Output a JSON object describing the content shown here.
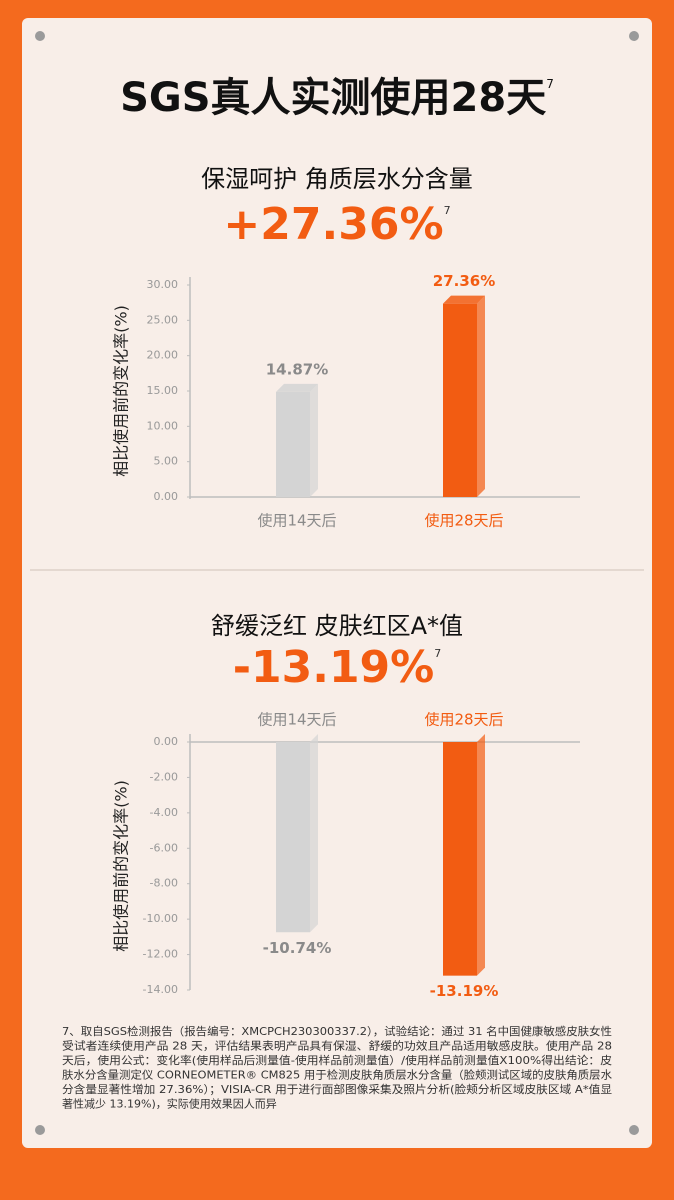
{
  "page": {
    "title": "SGS真人实测使用28天",
    "title_note": "7",
    "footnote": [
      "7、取自SGS检测报告（报告编号：XMCPCH230300337.2），试验结论：通过 31 名中国健康敏感皮肤女性",
      "受试者连续使用产品 28 天，评估结果表明产品具有保湿、舒缓的功效且产品适用敏感皮肤。使用产品 28",
      "天后，使用公式：变化率(使用样品后测量值-使用样品前测量值）/使用样品前测量值X100%得出结论：皮",
      "肤水分含量测定仪 CORNEOMETER® CM825 用于检测皮肤角质层水分含量（脸颊测试区域的皮肤角质层水",
      "分含量显著性增加 27.36%）；VISIA-CR 用于进行面部图像采集及照片分析(脸颊分析区域皮肤区域 A*值显",
      "著性减少 13.19%)，实际使用效果因人而异"
    ]
  },
  "chart_data": [
    {
      "type": "bar",
      "title": "保湿呵护  角质层水分含量",
      "headline": "+27.36%",
      "headline_note": "7",
      "y_label": "相比使用前的变化率(%)",
      "categories": [
        "使用14天后",
        "使用28天后"
      ],
      "values": [
        14.87,
        27.36
      ],
      "value_labels": [
        "14.87%",
        "27.36%"
      ],
      "colors": [
        "#d4d4d4",
        "#f25c12"
      ],
      "label_colors": [
        "#8a8a8a",
        "#f25c12"
      ],
      "ylim": [
        0,
        30
      ],
      "yticks": [
        {
          "value": 0,
          "label": "0.00"
        },
        {
          "value": 5,
          "label": "5.00"
        },
        {
          "value": 10,
          "label": "10.00"
        },
        {
          "value": 15,
          "label": "15.00"
        },
        {
          "value": 20,
          "label": "20.00"
        },
        {
          "value": 25,
          "label": "25.00"
        },
        {
          "value": 30,
          "label": "30.00"
        }
      ],
      "grid": false
    },
    {
      "type": "bar",
      "title": "舒缓泛红 皮肤红区A*值",
      "headline": "-13.19%",
      "headline_note": "7",
      "y_label": "相比使用前的变化率(%)",
      "categories": [
        "使用14天后",
        "使用28天后"
      ],
      "values": [
        -10.74,
        -13.19
      ],
      "value_labels": [
        "-10.74%",
        "-13.19%"
      ],
      "colors": [
        "#d4d4d4",
        "#f25c12"
      ],
      "label_colors": [
        "#8a8a8a",
        "#f25c12"
      ],
      "ylim": [
        -14,
        0
      ],
      "yticks": [
        {
          "value": 0,
          "label": "0.00"
        },
        {
          "value": -2,
          "label": "-2.00"
        },
        {
          "value": -4,
          "label": "-4.00"
        },
        {
          "value": -6,
          "label": "-6.00"
        },
        {
          "value": -8,
          "label": "-8.00"
        },
        {
          "value": -10,
          "label": "-10.00"
        },
        {
          "value": -12,
          "label": "-12.00"
        },
        {
          "value": -14,
          "label": "-14.00"
        }
      ],
      "grid": false
    }
  ]
}
